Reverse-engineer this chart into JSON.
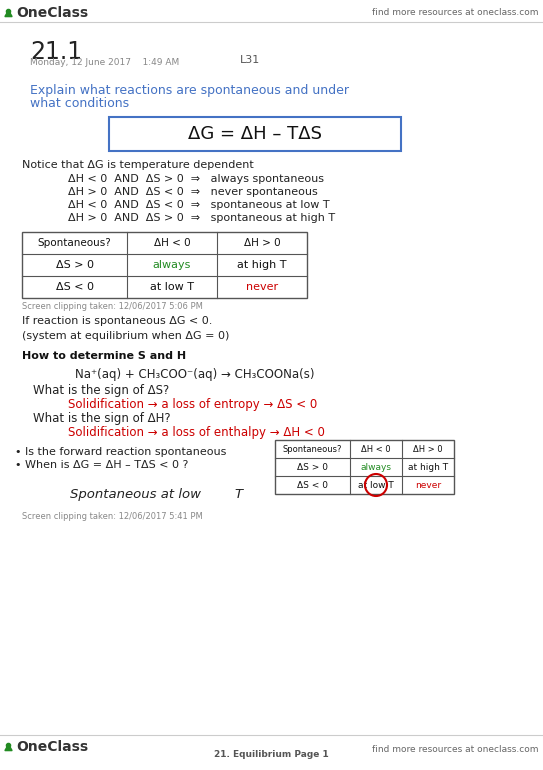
{
  "bg_color": "#ffffff",
  "header_right": "find more resources at oneclass.com",
  "title": "21.1",
  "date": "Monday, 12 June 2017    1:49 AM",
  "lecture": "L31",
  "blue_heading_line1": "Explain what reactions are spontaneous and under",
  "blue_heading_line2": "what conditions",
  "formula": "ΔG = ΔH – TΔS",
  "notice": "Notice that ΔG is temperature dependent",
  "conditions": [
    "ΔH < 0  AND  ΔS > 0  ⇒   always spontaneous",
    "ΔH > 0  AND  ΔS < 0  ⇒   never spontaneous",
    "ΔH < 0  AND  ΔS < 0  ⇒   spontaneous at low T",
    "ΔH > 0  AND  ΔS > 0  ⇒   spontaneous at high T"
  ],
  "table1_header": [
    "Spontaneous?",
    "ΔH < 0",
    "ΔH > 0"
  ],
  "table1_row1": [
    "ΔS > 0",
    "always",
    "at high T"
  ],
  "table1_row2": [
    "ΔS < 0",
    "at low T",
    "never"
  ],
  "always_color": "#228B22",
  "never_color": "#cc0000",
  "clip1": "Screen clipping taken: 12/06/2017 5:06 PM",
  "spont_note1": "If reaction is spontaneous ΔG < 0.",
  "spont_note2": "(system at equilibrium when ΔG = 0)",
  "section2_bold": "How to determine S and H",
  "reaction": "Na⁺(aq) + CH₃COO⁻(aq) → CH₃COONa(s)",
  "sign_S_q": "What is the sign of ΔS?",
  "sign_S_a": "Solidification → a loss of entropy → ΔS < 0",
  "sign_H_q": "What is the sign of ΔH?",
  "sign_H_a": "Solidification → a loss of enthalpy → ΔH < 0",
  "bullet1": "Is the forward reaction spontaneous",
  "bullet2": "When is ΔG = ΔH – TΔS < 0 ?",
  "spont_low": "Spontaneous at low T",
  "table2_header": [
    "Spontaneous?",
    "ΔH < 0",
    "ΔH > 0"
  ],
  "table2_row1": [
    "ΔS > 0",
    "always",
    "at high T"
  ],
  "table2_row2": [
    "ΔS < 0",
    "at low T",
    "never"
  ],
  "clip2": "Screen clipping taken: 12/06/2017 5:41 PM",
  "footer_logo": "OneClass",
  "footer_center": "21. Equilibrium Page 1",
  "footer_right": "find more resources at oneclass.com",
  "blue_color": "#4472c4",
  "red_color": "#cc0000",
  "green_color": "#228B22",
  "dark_color": "#111111",
  "gray_color": "#888888",
  "logo_color": "#444444"
}
